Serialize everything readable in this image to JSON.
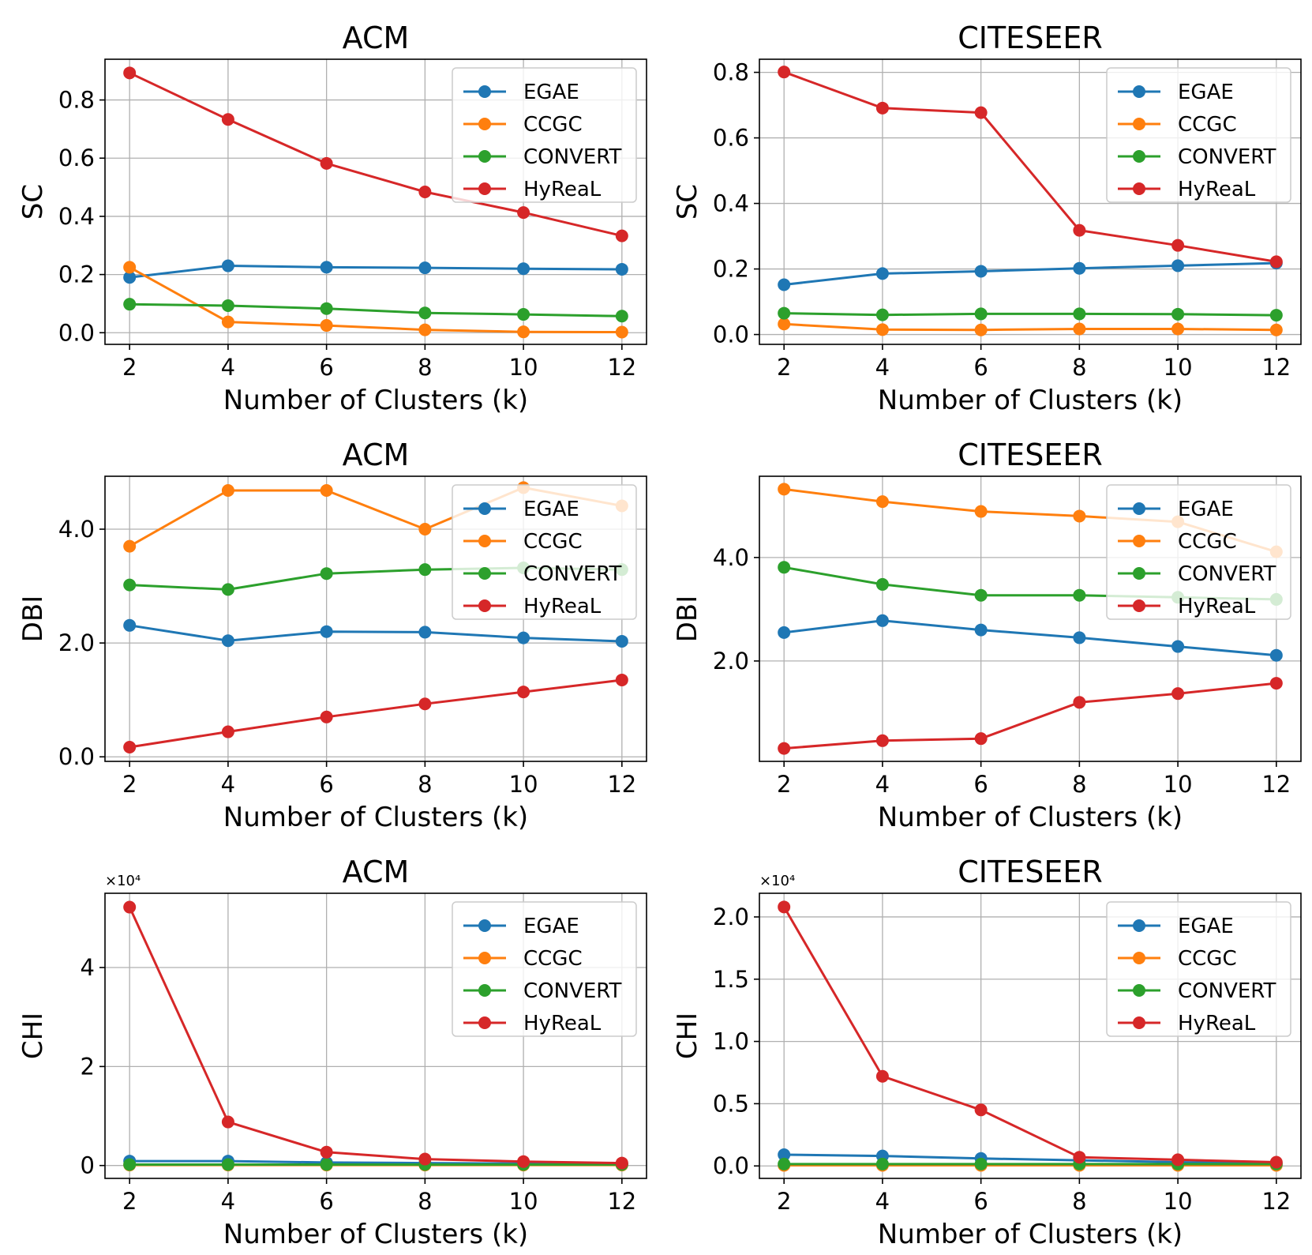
{
  "chart_data": [
    {
      "type": "line",
      "title": "ACM",
      "xlabel": "Number of Clusters (k)",
      "ylabel": "SC",
      "x": [
        2,
        4,
        6,
        8,
        10,
        12
      ],
      "xticks": [
        "2",
        "4",
        "6",
        "8",
        "10",
        "12"
      ],
      "ylim": [
        -0.04,
        0.94
      ],
      "yticks": [
        0,
        0.2,
        0.4,
        0.6,
        0.8
      ],
      "yticklabels": [
        "0.0",
        "0.2",
        "0.4",
        "0.6",
        "0.8"
      ],
      "exponent": "",
      "legend_position": "top-right",
      "grid": true,
      "series": [
        {
          "name": "EGAE",
          "color": "#1f77b4",
          "values": [
            0.19,
            0.23,
            0.225,
            0.223,
            0.22,
            0.218
          ]
        },
        {
          "name": "CCGC",
          "color": "#ff7f0e",
          "values": [
            0.225,
            0.037,
            0.025,
            0.01,
            0.003,
            0.002
          ]
        },
        {
          "name": "CONVERT",
          "color": "#2ca02c",
          "values": [
            0.098,
            0.093,
            0.083,
            0.068,
            0.063,
            0.057
          ]
        },
        {
          "name": "HyReaL",
          "color": "#d62728",
          "values": [
            0.893,
            0.733,
            0.582,
            0.484,
            0.413,
            0.333
          ]
        }
      ]
    },
    {
      "type": "line",
      "title": "CITESEER",
      "xlabel": "Number of Clusters (k)",
      "ylabel": "SC",
      "x": [
        2,
        4,
        6,
        8,
        10,
        12
      ],
      "xticks": [
        "2",
        "4",
        "6",
        "8",
        "10",
        "12"
      ],
      "ylim": [
        -0.03,
        0.84
      ],
      "yticks": [
        0,
        0.2,
        0.4,
        0.6,
        0.8
      ],
      "yticklabels": [
        "0.0",
        "0.2",
        "0.4",
        "0.6",
        "0.8"
      ],
      "exponent": "",
      "legend_position": "top-right",
      "grid": true,
      "series": [
        {
          "name": "EGAE",
          "color": "#1f77b4",
          "values": [
            0.152,
            0.186,
            0.193,
            0.202,
            0.21,
            0.218
          ]
        },
        {
          "name": "CCGC",
          "color": "#ff7f0e",
          "values": [
            0.032,
            0.015,
            0.014,
            0.017,
            0.017,
            0.014
          ]
        },
        {
          "name": "CONVERT",
          "color": "#2ca02c",
          "values": [
            0.065,
            0.06,
            0.063,
            0.063,
            0.062,
            0.059
          ]
        },
        {
          "name": "HyReaL",
          "color": "#d62728",
          "values": [
            0.801,
            0.691,
            0.677,
            0.318,
            0.272,
            0.222
          ]
        }
      ]
    },
    {
      "type": "line",
      "title": "ACM",
      "xlabel": "Number of Clusters (k)",
      "ylabel": "DBI",
      "x": [
        2,
        4,
        6,
        8,
        10,
        12
      ],
      "xticks": [
        "2",
        "4",
        "6",
        "8",
        "10",
        "12"
      ],
      "ylim": [
        -0.08,
        4.93
      ],
      "yticks": [
        0,
        2,
        4
      ],
      "yticklabels": [
        "0.0",
        "2.0",
        "4.0"
      ],
      "exponent": "",
      "legend_position": "top-right",
      "grid": true,
      "series": [
        {
          "name": "EGAE",
          "color": "#1f77b4",
          "values": [
            2.31,
            2.04,
            2.2,
            2.19,
            2.09,
            2.03
          ]
        },
        {
          "name": "CCGC",
          "color": "#ff7f0e",
          "values": [
            3.7,
            4.68,
            4.68,
            4.0,
            4.73,
            4.41
          ]
        },
        {
          "name": "CONVERT",
          "color": "#2ca02c",
          "values": [
            3.02,
            2.94,
            3.22,
            3.29,
            3.32,
            3.29
          ]
        },
        {
          "name": "HyReaL",
          "color": "#d62728",
          "values": [
            0.17,
            0.44,
            0.7,
            0.93,
            1.14,
            1.35
          ]
        }
      ]
    },
    {
      "type": "line",
      "title": "CITESEER",
      "xlabel": "Number of Clusters (k)",
      "ylabel": "DBI",
      "x": [
        2,
        4,
        6,
        8,
        10,
        12
      ],
      "xticks": [
        "2",
        "4",
        "6",
        "8",
        "10",
        "12"
      ],
      "ylim": [
        0.06,
        5.57
      ],
      "yticks": [
        2,
        4
      ],
      "yticklabels": [
        "2.0",
        "4.0"
      ],
      "exponent": "",
      "legend_position": "top-right",
      "grid": true,
      "series": [
        {
          "name": "EGAE",
          "color": "#1f77b4",
          "values": [
            2.55,
            2.78,
            2.6,
            2.45,
            2.28,
            2.11
          ]
        },
        {
          "name": "CCGC",
          "color": "#ff7f0e",
          "values": [
            5.32,
            5.08,
            4.89,
            4.8,
            4.69,
            4.11
          ]
        },
        {
          "name": "CONVERT",
          "color": "#2ca02c",
          "values": [
            3.81,
            3.48,
            3.27,
            3.27,
            3.23,
            3.19
          ]
        },
        {
          "name": "HyReaL",
          "color": "#d62728",
          "values": [
            0.31,
            0.46,
            0.5,
            1.2,
            1.37,
            1.57
          ]
        }
      ]
    },
    {
      "type": "line",
      "title": "ACM",
      "xlabel": "Number of Clusters (k)",
      "ylabel": "CHI",
      "x": [
        2,
        4,
        6,
        8,
        10,
        12
      ],
      "xticks": [
        "2",
        "4",
        "6",
        "8",
        "10",
        "12"
      ],
      "ylim": [
        -0.26,
        5.5
      ],
      "yticks": [
        0,
        2,
        4
      ],
      "yticklabels": [
        "0",
        "2",
        "4"
      ],
      "exponent": "×10⁴",
      "legend_position": "top-right",
      "grid": true,
      "series": [
        {
          "name": "EGAE",
          "color": "#1f77b4",
          "values": [
            0.09,
            0.09,
            0.06,
            0.05,
            0.04,
            0.03
          ]
        },
        {
          "name": "CCGC",
          "color": "#ff7f0e",
          "values": [
            0.01,
            0.01,
            0.01,
            0.01,
            0.01,
            0.01
          ]
        },
        {
          "name": "CONVERT",
          "color": "#2ca02c",
          "values": [
            0.02,
            0.02,
            0.02,
            0.02,
            0.02,
            0.02
          ]
        },
        {
          "name": "HyReaL",
          "color": "#d62728",
          "values": [
            5.22,
            0.88,
            0.27,
            0.13,
            0.08,
            0.05
          ]
        }
      ]
    },
    {
      "type": "line",
      "title": "CITESEER",
      "xlabel": "Number of Clusters (k)",
      "ylabel": "CHI",
      "x": [
        2,
        4,
        6,
        8,
        10,
        12
      ],
      "xticks": [
        "2",
        "4",
        "6",
        "8",
        "10",
        "12"
      ],
      "ylim": [
        -0.1,
        2.19
      ],
      "yticks": [
        0,
        0.5,
        1.0,
        1.5,
        2.0
      ],
      "yticklabels": [
        "0.0",
        "0.5",
        "1.0",
        "1.5",
        "2.0"
      ],
      "exponent": "×10⁴",
      "legend_position": "top-right",
      "grid": true,
      "series": [
        {
          "name": "EGAE",
          "color": "#1f77b4",
          "values": [
            0.09,
            0.08,
            0.06,
            0.045,
            0.03,
            0.02
          ]
        },
        {
          "name": "CCGC",
          "color": "#ff7f0e",
          "values": [
            0.005,
            0.005,
            0.005,
            0.005,
            0.005,
            0.005
          ]
        },
        {
          "name": "CONVERT",
          "color": "#2ca02c",
          "values": [
            0.015,
            0.015,
            0.015,
            0.015,
            0.015,
            0.015
          ]
        },
        {
          "name": "HyReaL",
          "color": "#d62728",
          "values": [
            2.08,
            0.72,
            0.45,
            0.07,
            0.05,
            0.03
          ]
        }
      ]
    }
  ]
}
